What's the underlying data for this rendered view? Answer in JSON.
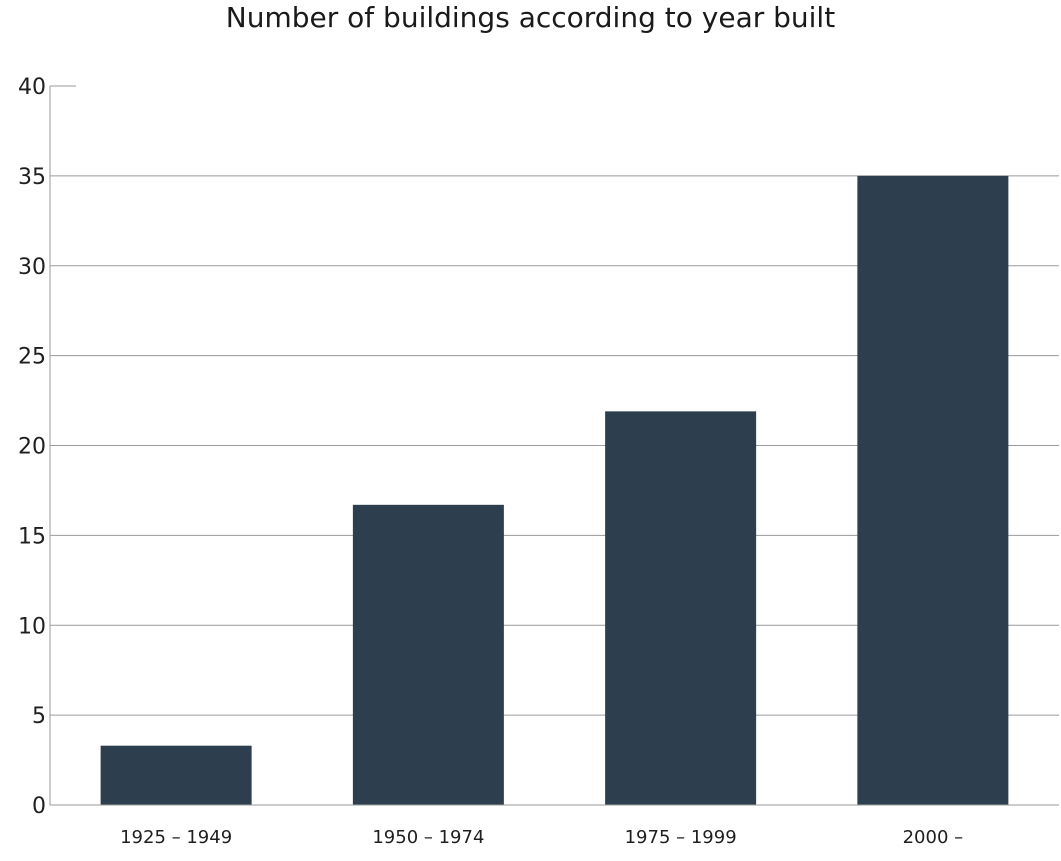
{
  "chart_data": {
    "type": "bar",
    "title": "Number of buildings according to year built",
    "xlabel": "",
    "ylabel": "",
    "categories": [
      "1925 – 1949",
      "1950 – 1974",
      "1975 – 1999",
      "2000 –"
    ],
    "values": [
      3.3,
      16.7,
      21.9,
      35
    ],
    "ylim": [
      0,
      40
    ],
    "yticks": [
      "0",
      "5",
      "10",
      "15",
      "20",
      "25",
      "30",
      "35",
      "40"
    ],
    "grid": "horizontal",
    "legend": "none",
    "colors": {
      "bar": "#2d3e4e",
      "grid": "#9a9a9a",
      "axis": "#9a9a9a"
    }
  }
}
